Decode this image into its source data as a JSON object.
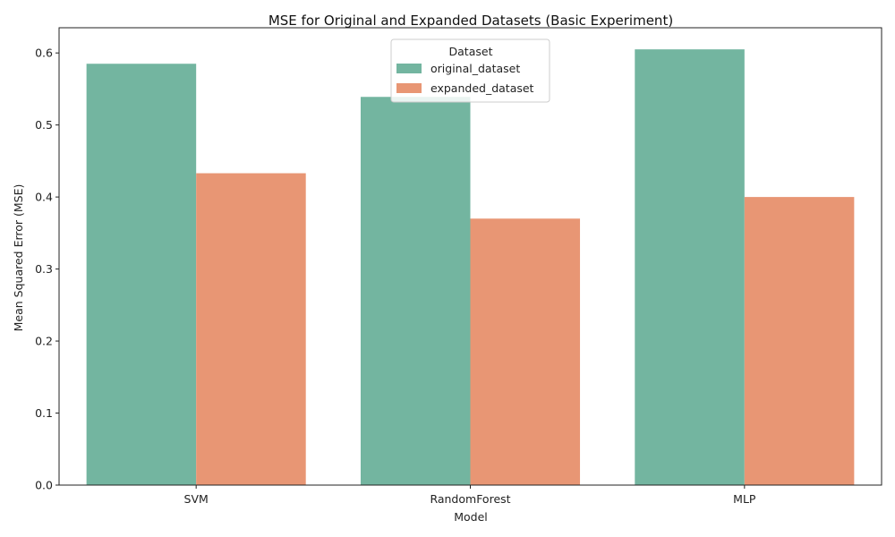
{
  "chart_data": {
    "type": "bar",
    "title": "MSE for Original and Expanded Datasets (Basic Experiment)",
    "xlabel": "Model",
    "ylabel": "Mean Squared Error (MSE)",
    "categories": [
      "SVM",
      "RandomForest",
      "MLP"
    ],
    "series": [
      {
        "name": "original_dataset",
        "values": [
          0.585,
          0.539,
          0.605
        ],
        "color": "#73b5a0"
      },
      {
        "name": "expanded_dataset",
        "values": [
          0.433,
          0.37,
          0.4
        ],
        "color": "#e89674"
      }
    ],
    "ylim": [
      0,
      0.635
    ],
    "yticks": [
      0.0,
      0.1,
      0.2,
      0.3,
      0.4,
      0.5,
      0.6
    ],
    "ytick_labels": [
      "0.0",
      "0.1",
      "0.2",
      "0.3",
      "0.4",
      "0.5",
      "0.6"
    ],
    "grid": false,
    "legend": {
      "title": "Dataset",
      "placement": "top-center"
    }
  }
}
